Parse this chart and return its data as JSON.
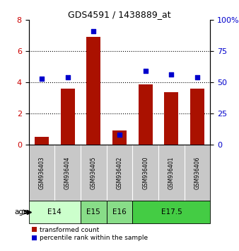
{
  "title": "GDS4591 / 1438889_at",
  "samples": [
    "GSM936403",
    "GSM936404",
    "GSM936405",
    "GSM936402",
    "GSM936400",
    "GSM936401",
    "GSM936406"
  ],
  "red_values": [
    0.5,
    3.6,
    6.9,
    0.9,
    3.85,
    3.35,
    3.6
  ],
  "blue_values": [
    53,
    54,
    91,
    8,
    59,
    56,
    54
  ],
  "age_groups": [
    {
      "label": "E14",
      "start": 0,
      "end": 2,
      "color": "#ccffcc"
    },
    {
      "label": "E15",
      "start": 2,
      "end": 3,
      "color": "#66dd66"
    },
    {
      "label": "E16",
      "start": 3,
      "end": 4,
      "color": "#66dd66"
    },
    {
      "label": "E17.5",
      "start": 4,
      "end": 7,
      "color": "#44cc44"
    }
  ],
  "ylim_left": [
    0,
    8
  ],
  "ylim_right": [
    0,
    100
  ],
  "yticks_left": [
    0,
    2,
    4,
    6,
    8
  ],
  "ytick_labels_left": [
    "0",
    "2",
    "4",
    "6",
    "8"
  ],
  "yticks_right": [
    0,
    25,
    50,
    75,
    100
  ],
  "ytick_labels_right": [
    "0",
    "25",
    "50",
    "75",
    "100%"
  ],
  "bar_color": "#aa1100",
  "dot_color": "#0000cc",
  "sample_bg_color": "#c8c8c8",
  "xlabel_color": "#cc0000",
  "ylabel_right_color": "#0000cc",
  "bar_width": 0.55,
  "legend_red_label": "transformed count",
  "legend_blue_label": "percentile rank within the sample",
  "age_label": "age"
}
